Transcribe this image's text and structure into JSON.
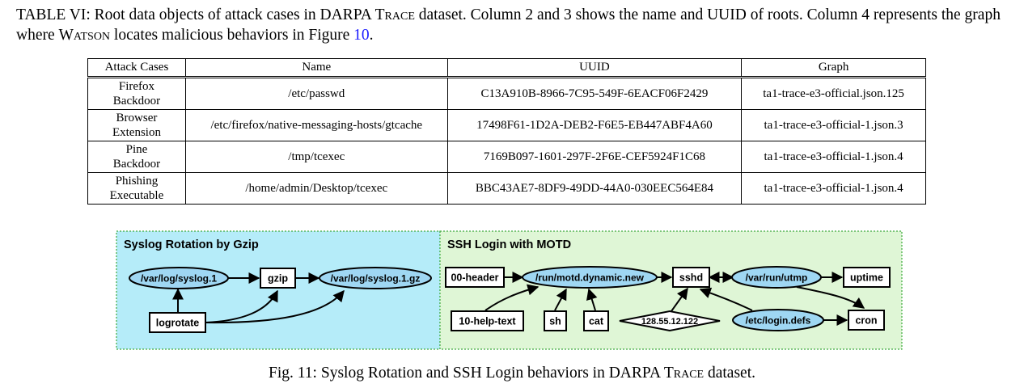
{
  "table_caption": {
    "prefix": "TABLE VI: Root data objects of attack cases in DARPA ",
    "trace": "Trace",
    "middle": " dataset. Column 2 and 3 shows the name and UUID of roots. Column 4 represents the graph where ",
    "watson": "Watson",
    "suffix": " locates malicious behaviors in Figure ",
    "fig_ref": "10",
    "end": "."
  },
  "table": {
    "headers": [
      "Attack Cases",
      "Name",
      "UUID",
      "Graph"
    ],
    "rows": [
      {
        "case_line1": "Firefox",
        "case_line2": "Backdoor",
        "name": "/etc/passwd",
        "uuid": "C13A910B-8966-7C95-549F-6EACF06F2429",
        "graph": "ta1-trace-e3-official.json.125"
      },
      {
        "case_line1": "Browser",
        "case_line2": "Extension",
        "name": "/etc/firefox/native-messaging-hosts/gtcache",
        "uuid": "17498F61-1D2A-DEB2-F6E5-EB447ABF4A60",
        "graph": "ta1-trace-e3-official-1.json.3"
      },
      {
        "case_line1": "Pine",
        "case_line2": "Backdoor",
        "name": "/tmp/tcexec",
        "uuid": "7169B097-1601-297F-2F6E-CEF5924F1C68",
        "graph": "ta1-trace-e3-official-1.json.4"
      },
      {
        "case_line1": "Phishing",
        "case_line2": "Executable",
        "name": "/home/admin/Desktop/tcexec",
        "uuid": "BBC43AE7-8DF9-49DD-44A0-030EEC564E84",
        "graph": "ta1-trace-e3-official-1.json.4"
      }
    ]
  },
  "figure": {
    "left_panel": {
      "title": "Syslog Rotation by Gzip",
      "color": "#b5ecf9",
      "nodes": {
        "syslog1": "/var/log/syslog.1",
        "gzip": "gzip",
        "syslog1gz": "/var/log/syslog.1.gz",
        "logrotate": "logrotate"
      }
    },
    "right_panel": {
      "title": "SSH Login with MOTD",
      "color": "#dff6d6",
      "nodes": {
        "header": "00-header",
        "motd": "/run/motd.dynamic.new",
        "sshd": "sshd",
        "utmp": "/var/run/utmp",
        "uptime": "uptime",
        "helptext": "10-help-text",
        "sh": "sh",
        "cat": "cat",
        "ip": "128.55.12.122",
        "logindefs": "/etc/login.defs",
        "cron": "cron"
      }
    },
    "ellipse_fill": "#9fd7f3",
    "border_color": "#3daa3d"
  },
  "figure_caption": {
    "prefix": "Fig. 11: Syslog Rotation and SSH Login behaviors in DARPA ",
    "trace": "Trace",
    "suffix": " dataset."
  }
}
